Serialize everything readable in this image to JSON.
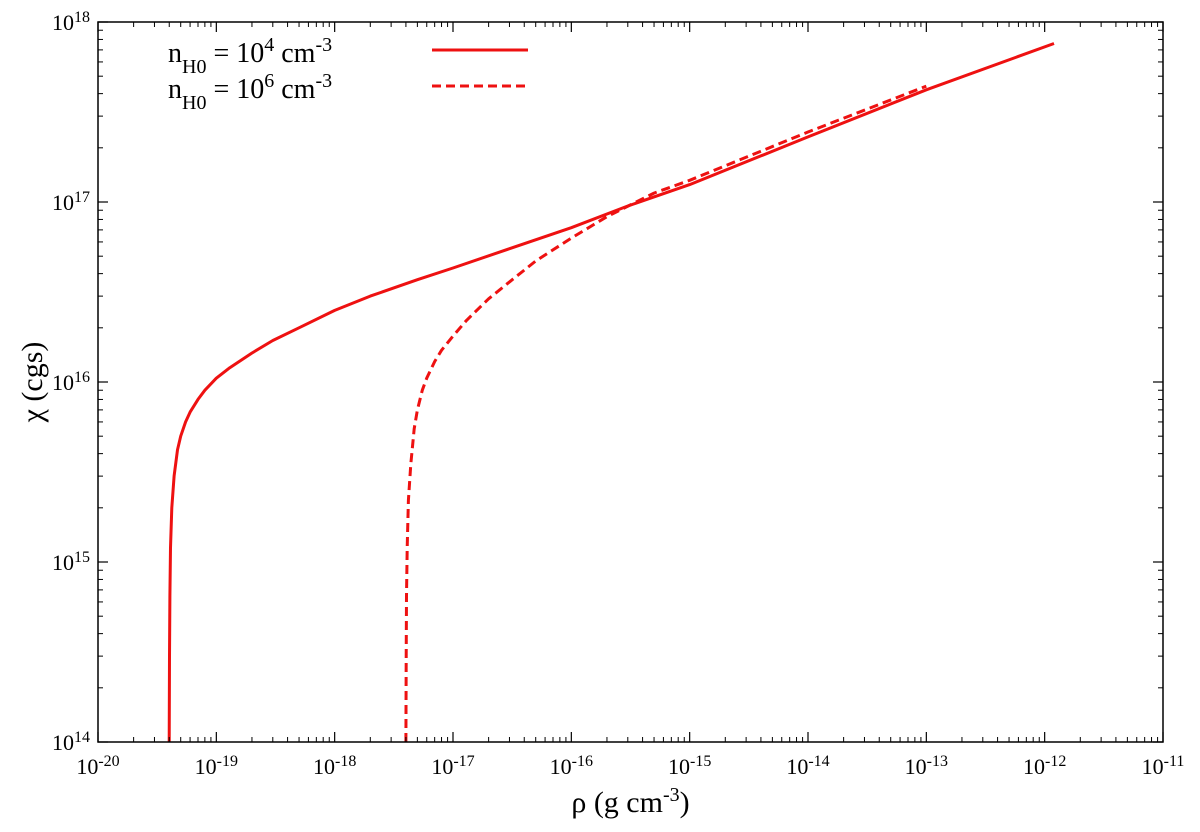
{
  "chart_data": {
    "type": "line",
    "title": "",
    "xlabel": {
      "base": "ρ (g cm",
      "exp": "-3",
      "close": ")"
    },
    "ylabel": "χ (cgs)",
    "x_scale": "log",
    "y_scale": "log",
    "xlim": [
      1e-20,
      1e-11
    ],
    "ylim": [
      100000000000000.0,
      1e+18
    ],
    "grid": false,
    "legend_position": "top-left",
    "x_ticks": [
      {
        "base": "10",
        "exp": "-20",
        "value": 1e-20
      },
      {
        "base": "10",
        "exp": "-19",
        "value": 1e-19
      },
      {
        "base": "10",
        "exp": "-18",
        "value": 1e-18
      },
      {
        "base": "10",
        "exp": "-17",
        "value": 1e-17
      },
      {
        "base": "10",
        "exp": "-16",
        "value": 1e-16
      },
      {
        "base": "10",
        "exp": "-15",
        "value": 1e-15
      },
      {
        "base": "10",
        "exp": "-14",
        "value": 1e-14
      },
      {
        "base": "10",
        "exp": "-13",
        "value": 1e-13
      },
      {
        "base": "10",
        "exp": "-12",
        "value": 1e-12
      },
      {
        "base": "10",
        "exp": "-11",
        "value": 1e-11
      }
    ],
    "y_ticks": [
      {
        "base": "10",
        "exp": "14",
        "value": 100000000000000.0
      },
      {
        "base": "10",
        "exp": "15",
        "value": 1000000000000000.0
      },
      {
        "base": "10",
        "exp": "16",
        "value": 1e+16
      },
      {
        "base": "10",
        "exp": "17",
        "value": 1e+17
      },
      {
        "base": "10",
        "exp": "18",
        "value": 1e+18
      }
    ],
    "series": [
      {
        "legend": {
          "n": "n",
          "sub": "H0",
          "eq": " = 10",
          "exp": "4",
          "unit": " cm",
          "unit_exp": "-3"
        },
        "color": "#ee1111",
        "style": "solid",
        "x": [
          4e-20,
          4.02e-20,
          4.05e-20,
          4.1e-20,
          4.2e-20,
          4.4e-20,
          4.7e-20,
          5e-20,
          5.5e-20,
          6e-20,
          7e-20,
          8e-20,
          1e-19,
          1.3e-19,
          2e-19,
          3e-19,
          5e-19,
          1e-18,
          2e-18,
          5e-18,
          1e-17,
          3e-17,
          1e-16,
          3e-16,
          1e-15,
          1e-14,
          1e-13,
          1.2e-12
        ],
        "y": [
          100000000000000.0,
          300000000000000.0,
          650000000000000.0,
          1200000000000000.0,
          2000000000000000.0,
          3000000000000000.0,
          4200000000000000.0,
          5000000000000000.0,
          6000000000000000.0,
          6800000000000000.0,
          8000000000000000.0,
          9000000000000000.0,
          1.05e+16,
          1.2e+16,
          1.45e+16,
          1.7e+16,
          2e+16,
          2.5e+16,
          3e+16,
          3.7e+16,
          4.3e+16,
          5.5e+16,
          7.2e+16,
          9.5e+16,
          1.25e+17,
          2.3e+17,
          4.2e+17,
          7.6e+17
        ]
      },
      {
        "legend": {
          "n": "n",
          "sub": "H0",
          "eq": " = 10",
          "exp": "6",
          "unit": " cm",
          "unit_exp": "-3"
        },
        "color": "#ee1111",
        "style": "dashed",
        "x": [
          4e-18,
          4.02e-18,
          4.05e-18,
          4.1e-18,
          4.2e-18,
          4.4e-18,
          4.7e-18,
          5e-18,
          5.5e-18,
          6e-18,
          7e-18,
          8e-18,
          1e-17,
          1.3e-17,
          2e-17,
          3e-17,
          5e-17,
          1e-16,
          2e-16,
          5e-16,
          1e-15,
          1e-14,
          1e-13
        ],
        "y": [
          100000000000000.0,
          300000000000000.0,
          650000000000000.0,
          1200000000000000.0,
          2200000000000000.0,
          3500000000000000.0,
          5500000000000000.0,
          7000000000000000.0,
          9000000000000000.0,
          1.05e+16,
          1.3e+16,
          1.5e+16,
          1.8e+16,
          2.2e+16,
          2.9e+16,
          3.6e+16,
          4.7e+16,
          6.3e+16,
          8.3e+16,
          1.12e+17,
          1.32e+17,
          2.45e+17,
          4.4e+17
        ]
      }
    ]
  }
}
